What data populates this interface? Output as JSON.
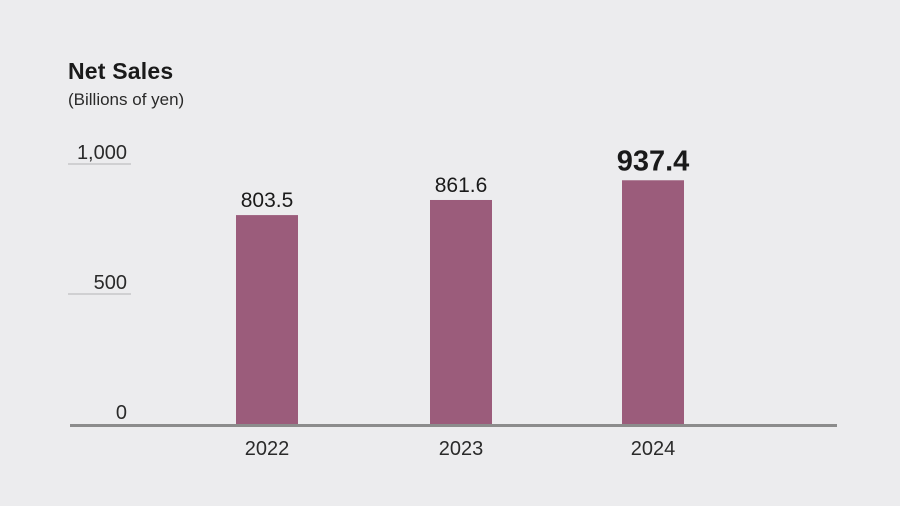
{
  "chart_data": {
    "type": "bar",
    "title": "Net Sales",
    "subtitle": "(Billions of yen)",
    "categories": [
      "2022",
      "2023",
      "2024"
    ],
    "values": [
      803.5,
      861.6,
      937.4
    ],
    "value_labels": [
      "803.5",
      "861.6",
      "937.4"
    ],
    "highlight_index": 2,
    "yticks": [
      0,
      500,
      1000
    ],
    "ytick_labels": [
      "0",
      "500",
      "1,000"
    ],
    "ylim": [
      0,
      1000
    ],
    "grid": false,
    "colors": {
      "bar": "#9b5c7b",
      "axis": "#8c8c8c",
      "tick_line": "#b5b5b5",
      "background": "#ececee"
    }
  }
}
